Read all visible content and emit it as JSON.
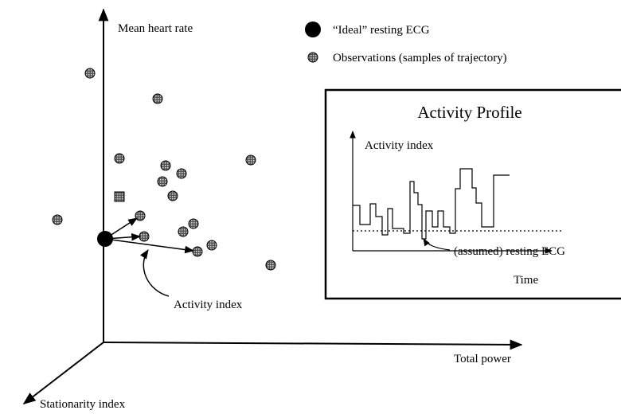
{
  "axes": {
    "y": "Mean heart rate",
    "x": "Total power",
    "z": "Stationarity index"
  },
  "legend": {
    "ideal": "“Ideal” resting ECG",
    "observations": "Observations (samples of trajectory)"
  },
  "annotation": "Activity index",
  "inset": {
    "title": "Activity Profile",
    "y_label": "Activity index",
    "x_label": "Time",
    "annotation": "(assumed) resting ECG"
  }
}
